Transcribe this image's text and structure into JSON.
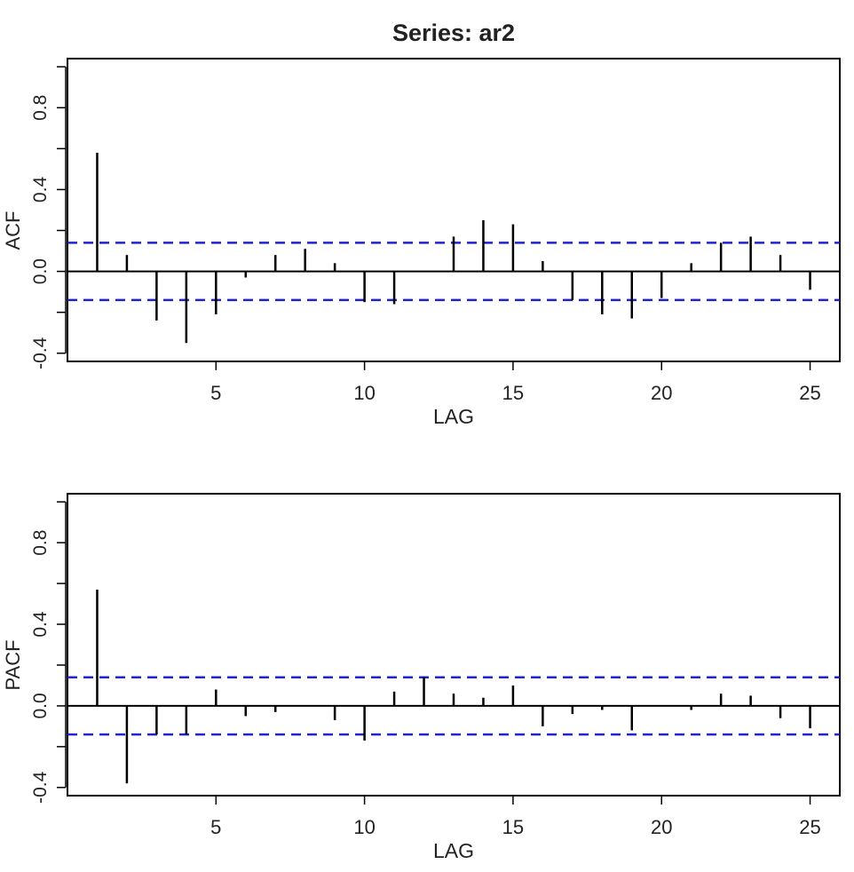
{
  "title": "Series:  ar2",
  "colors": {
    "bar": "#000000",
    "confidence_band": "#2222cc",
    "axis": "#000000",
    "text": "#222222"
  },
  "chart_data": [
    {
      "type": "bar",
      "ylabel": "ACF",
      "xlabel": "LAG",
      "xlim": [
        0.0,
        26.0
      ],
      "ylim": [
        -0.44,
        1.04
      ],
      "xticks": [
        5,
        10,
        15,
        20,
        25
      ],
      "yticks": [
        -0.4,
        0.0,
        0.4,
        0.8
      ],
      "ytick_labels": [
        "-0.4",
        "0.0",
        "0.4",
        "0.8"
      ],
      "yticks_minor": [
        -0.2,
        0.2,
        0.6,
        1.0
      ],
      "confidence_bound": 0.14,
      "x": [
        1,
        2,
        3,
        4,
        5,
        6,
        7,
        8,
        9,
        10,
        11,
        12,
        13,
        14,
        15,
        16,
        17,
        18,
        19,
        20,
        21,
        22,
        23,
        24,
        25
      ],
      "values": [
        0.58,
        0.08,
        -0.24,
        -0.35,
        -0.21,
        -0.03,
        0.08,
        0.11,
        0.04,
        -0.15,
        -0.16,
        0.0,
        0.17,
        0.25,
        0.23,
        0.05,
        -0.14,
        -0.21,
        -0.23,
        -0.13,
        0.04,
        0.14,
        0.17,
        0.08,
        -0.09
      ]
    },
    {
      "type": "bar",
      "ylabel": "PACF",
      "xlabel": "LAG",
      "xlim": [
        0.0,
        26.0
      ],
      "ylim": [
        -0.44,
        1.04
      ],
      "xticks": [
        5,
        10,
        15,
        20,
        25
      ],
      "yticks": [
        -0.4,
        0.0,
        0.4,
        0.8
      ],
      "ytick_labels": [
        "-0.4",
        "0.0",
        "0.4",
        "0.8"
      ],
      "yticks_minor": [
        -0.2,
        0.2,
        0.6,
        1.0
      ],
      "confidence_bound": 0.14,
      "x": [
        1,
        2,
        3,
        4,
        5,
        6,
        7,
        8,
        9,
        10,
        11,
        12,
        13,
        14,
        15,
        16,
        17,
        18,
        19,
        20,
        21,
        22,
        23,
        24,
        25
      ],
      "values": [
        0.57,
        -0.38,
        -0.14,
        -0.14,
        0.08,
        -0.05,
        -0.03,
        0.0,
        -0.07,
        -0.17,
        0.07,
        0.14,
        0.06,
        0.04,
        0.1,
        -0.1,
        -0.04,
        -0.02,
        -0.12,
        0.0,
        -0.02,
        0.06,
        0.05,
        -0.06,
        -0.11
      ]
    }
  ]
}
